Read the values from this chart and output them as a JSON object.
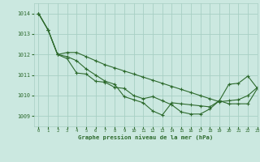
{
  "background_color": "#cbe8e0",
  "grid_color": "#a8cfc4",
  "line_color": "#2d6a2d",
  "marker_color": "#2d6a2d",
  "title": "Graphe pression niveau de la mer (hPa)",
  "xlim": [
    -0.5,
    23
  ],
  "ylim": [
    1008.5,
    1014.5
  ],
  "yticks": [
    1009,
    1010,
    1011,
    1012,
    1013,
    1014
  ],
  "xticks": [
    0,
    1,
    2,
    3,
    4,
    5,
    6,
    7,
    8,
    9,
    10,
    11,
    12,
    13,
    14,
    15,
    16,
    17,
    18,
    19,
    20,
    21,
    22,
    23
  ],
  "series": [
    [
      1014.0,
      1013.2,
      1012.0,
      1012.1,
      1012.1,
      1011.9,
      1011.7,
      1011.5,
      1011.35,
      1011.2,
      1011.05,
      1010.9,
      1010.75,
      1010.6,
      1010.45,
      1010.3,
      1010.15,
      1010.0,
      1009.85,
      1009.7,
      1009.75,
      1009.8,
      1010.0,
      1010.4
    ],
    [
      1014.0,
      1013.2,
      1012.0,
      1011.8,
      1011.1,
      1011.05,
      1010.7,
      1010.65,
      1010.4,
      1010.35,
      1010.0,
      1009.85,
      1009.95,
      1009.75,
      1009.55,
      1009.2,
      1009.1,
      1009.1,
      1009.35,
      1009.75,
      1010.55,
      1010.6,
      1010.95,
      1010.35
    ],
    [
      1014.0,
      1013.2,
      1012.0,
      1011.9,
      1011.7,
      1011.3,
      1011.0,
      1010.7,
      1010.55,
      1009.95,
      1009.8,
      1009.65,
      1009.25,
      1009.05,
      1009.65,
      1009.6,
      1009.55,
      1009.5,
      1009.45,
      1009.75,
      1009.6,
      1009.6,
      1009.6,
      1010.35
    ]
  ]
}
